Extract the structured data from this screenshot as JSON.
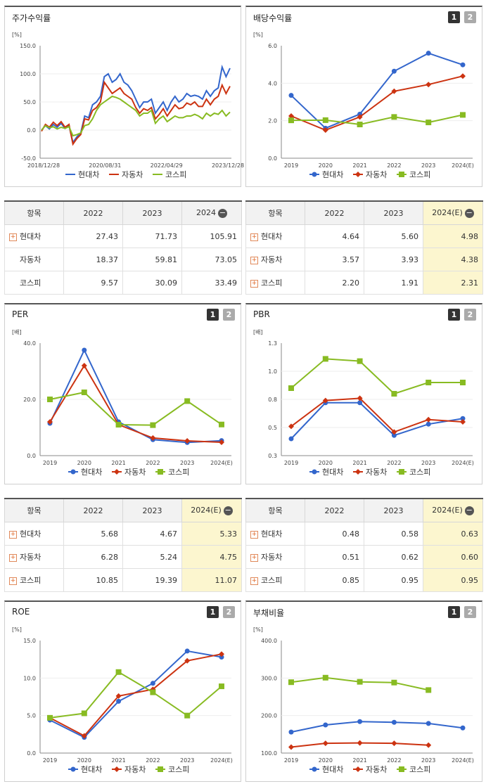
{
  "colors": {
    "hyundai": "#3366cc",
    "auto": "#cc3311",
    "kospi": "#88bb22"
  },
  "panels": [
    {
      "title": "주가수익률",
      "unit": "[%]",
      "buttons": [],
      "chart": {
        "type": "line",
        "ylim": [
          -50,
          150
        ],
        "yticks": [
          "150.0",
          "100.0",
          "50.0",
          "0.0",
          "-50.0"
        ],
        "xticks": [
          "2018/12/28",
          "2020/08/31",
          "2022/04/29",
          "2023/12/28"
        ],
        "legend": [
          "현대차",
          "자동차",
          "코스피"
        ]
      }
    },
    {
      "title": "배당수익률",
      "unit": "[%]",
      "buttons": [
        "1",
        "2"
      ],
      "chart": {
        "type": "line",
        "ylim": [
          0,
          6
        ],
        "yticks": [
          "6.0",
          "4.0",
          "2.0",
          "0.0"
        ],
        "xticks": [
          "2019",
          "2020",
          "2021",
          "2022",
          "2023",
          "2024(E)"
        ],
        "legend": [
          "현대차",
          "자동차",
          "코스피"
        ]
      }
    },
    {
      "title": "PER",
      "unit": "[배]",
      "buttons": [
        "1",
        "2"
      ],
      "chart": {
        "type": "line",
        "ylim": [
          0,
          40
        ],
        "yticks": [
          "40.0",
          "20.0",
          "0.0"
        ],
        "xticks": [
          "2019",
          "2020",
          "2021",
          "2022",
          "2023",
          "2024(E)"
        ],
        "legend": [
          "현대차",
          "자동차",
          "코스피"
        ]
      }
    },
    {
      "title": "PBR",
      "unit": "[배]",
      "buttons": [
        "1",
        "2"
      ],
      "chart": {
        "type": "line",
        "ylim": [
          0.3,
          1.3
        ],
        "yticks": [
          "1.3",
          "1.0",
          "0.8",
          "0.5",
          "0.3"
        ],
        "xticks": [
          "2019",
          "2020",
          "2021",
          "2022",
          "2023",
          "2024(E)"
        ],
        "legend": [
          "현대차",
          "자동차",
          "코스피"
        ]
      }
    },
    {
      "title": "ROE",
      "unit": "[%]",
      "buttons": [
        "1",
        "2"
      ],
      "chart": {
        "type": "line",
        "ylim": [
          0,
          15
        ],
        "yticks": [
          "15.0",
          "10.0",
          "5.0",
          "0.0"
        ],
        "xticks": [
          "2019",
          "2020",
          "2021",
          "2022",
          "2023",
          "2024(E)"
        ],
        "legend": [
          "현대차",
          "자동차",
          "코스피"
        ]
      }
    },
    {
      "title": "부채비율",
      "unit": "[%]",
      "buttons": [
        "1",
        "2"
      ],
      "chart": {
        "type": "line",
        "ylim": [
          100,
          400
        ],
        "yticks": [
          "400.0",
          "300.0",
          "200.0",
          "100.0"
        ],
        "xticks": [
          "2019",
          "2020",
          "2021",
          "2022",
          "2023",
          "2024(E)"
        ],
        "legend": [
          "현대차",
          "자동차",
          "코스피"
        ]
      }
    }
  ],
  "chart_data": [
    {
      "type": "line",
      "title": "주가수익률",
      "ylim": [
        -50,
        150
      ],
      "series": [
        {
          "name": "현대차",
          "values": [
            0,
            8,
            2,
            10,
            5,
            12,
            3,
            8,
            -22,
            -12,
            -5,
            25,
            22,
            45,
            50,
            60,
            95,
            100,
            85,
            90,
            100,
            85,
            80,
            70,
            55,
            40,
            50,
            50,
            55,
            30,
            40,
            50,
            35,
            50,
            60,
            50,
            55,
            65,
            60,
            62,
            60,
            55,
            70,
            60,
            70,
            75,
            112,
            95,
            110
          ]
        },
        {
          "name": "자동차",
          "values": [
            -2,
            10,
            5,
            14,
            8,
            15,
            5,
            10,
            -25,
            -15,
            -8,
            20,
            18,
            35,
            40,
            50,
            85,
            75,
            65,
            70,
            75,
            65,
            60,
            55,
            40,
            30,
            38,
            35,
            40,
            20,
            28,
            38,
            25,
            35,
            45,
            38,
            40,
            48,
            45,
            50,
            42,
            42,
            55,
            45,
            55,
            60,
            80,
            65,
            78
          ]
        },
        {
          "name": "코스피",
          "values": [
            0,
            8,
            4,
            6,
            2,
            5,
            3,
            6,
            -10,
            -8,
            -5,
            8,
            10,
            20,
            35,
            45,
            50,
            55,
            60,
            58,
            55,
            50,
            45,
            40,
            35,
            25,
            30,
            30,
            35,
            12,
            20,
            25,
            15,
            20,
            25,
            22,
            22,
            25,
            25,
            28,
            25,
            20,
            30,
            25,
            30,
            28,
            35,
            25,
            32
          ]
        }
      ]
    },
    {
      "type": "line",
      "title": "배당수익률",
      "categories": [
        "2019",
        "2020",
        "2021",
        "2022",
        "2023",
        "2024(E)"
      ],
      "ylim": [
        0,
        6
      ],
      "series": [
        {
          "name": "현대차",
          "values": [
            3.35,
            1.6,
            2.35,
            4.64,
            5.6,
            4.98
          ]
        },
        {
          "name": "자동차",
          "values": [
            2.25,
            1.5,
            2.2,
            3.57,
            3.93,
            4.38
          ]
        },
        {
          "name": "코스피",
          "values": [
            2.02,
            2.03,
            1.8,
            2.2,
            1.91,
            2.31
          ]
        }
      ]
    },
    {
      "type": "line",
      "title": "PER",
      "categories": [
        "2019",
        "2020",
        "2021",
        "2022",
        "2023",
        "2024(E)"
      ],
      "ylim": [
        0,
        40
      ],
      "series": [
        {
          "name": "현대차",
          "values": [
            11.5,
            37.5,
            12.0,
            5.68,
            4.67,
            5.33
          ]
        },
        {
          "name": "자동차",
          "values": [
            12.0,
            32.0,
            11.0,
            6.28,
            5.24,
            4.75
          ]
        },
        {
          "name": "코스피",
          "values": [
            20.0,
            22.5,
            11.0,
            10.85,
            19.39,
            11.07
          ]
        }
      ]
    },
    {
      "type": "line",
      "title": "PBR",
      "categories": [
        "2019",
        "2020",
        "2021",
        "2022",
        "2023",
        "2024(E)"
      ],
      "ylim": [
        0.3,
        1.3
      ],
      "series": [
        {
          "name": "현대차",
          "values": [
            0.45,
            0.77,
            0.77,
            0.48,
            0.58,
            0.63
          ]
        },
        {
          "name": "자동차",
          "values": [
            0.56,
            0.79,
            0.81,
            0.51,
            0.62,
            0.6
          ]
        },
        {
          "name": "코스피",
          "values": [
            0.9,
            1.16,
            1.14,
            0.85,
            0.95,
            0.95
          ]
        }
      ]
    },
    {
      "type": "line",
      "title": "ROE",
      "categories": [
        "2019",
        "2020",
        "2021",
        "2022",
        "2023",
        "2024(E)"
      ],
      "ylim": [
        0,
        15
      ],
      "series": [
        {
          "name": "현대차",
          "values": [
            4.4,
            2.1,
            6.9,
            9.3,
            13.6,
            12.8
          ]
        },
        {
          "name": "자동차",
          "values": [
            4.7,
            2.3,
            7.6,
            8.5,
            12.3,
            13.2
          ]
        },
        {
          "name": "코스피",
          "values": [
            4.7,
            5.3,
            10.8,
            8.1,
            5.0,
            8.9
          ]
        }
      ]
    },
    {
      "type": "line",
      "title": "부채비율",
      "categories": [
        "2019",
        "2020",
        "2021",
        "2022",
        "2023",
        "2024(E)"
      ],
      "ylim": [
        100,
        400
      ],
      "series": [
        {
          "name": "현대차",
          "values": [
            156,
            175,
            184,
            182,
            179,
            167
          ]
        },
        {
          "name": "자동차",
          "values": [
            116,
            126,
            127,
            126,
            121,
            null
          ]
        },
        {
          "name": "코스피",
          "values": [
            289,
            301,
            290,
            288,
            268,
            null
          ]
        }
      ]
    }
  ],
  "tables": [
    {
      "label": "항목",
      "years": [
        "2022",
        "2023",
        "2024"
      ],
      "highlight": false,
      "rows": [
        {
          "name": "현대차",
          "plus": true,
          "v": [
            "27.43",
            "71.73",
            "105.91"
          ]
        },
        {
          "name": "자동차",
          "plus": false,
          "v": [
            "18.37",
            "59.81",
            "73.05"
          ]
        },
        {
          "name": "코스피",
          "plus": false,
          "v": [
            "9.57",
            "30.09",
            "33.49"
          ]
        }
      ]
    },
    {
      "label": "항목",
      "years": [
        "2022",
        "2023",
        "2024(E)"
      ],
      "highlight": true,
      "rows": [
        {
          "name": "현대차",
          "plus": true,
          "v": [
            "4.64",
            "5.60",
            "4.98"
          ]
        },
        {
          "name": "자동차",
          "plus": true,
          "v": [
            "3.57",
            "3.93",
            "4.38"
          ]
        },
        {
          "name": "코스피",
          "plus": true,
          "v": [
            "2.20",
            "1.91",
            "2.31"
          ]
        }
      ]
    },
    {
      "label": "항목",
      "years": [
        "2022",
        "2023",
        "2024(E)"
      ],
      "highlight": true,
      "rows": [
        {
          "name": "현대차",
          "plus": true,
          "v": [
            "5.68",
            "4.67",
            "5.33"
          ]
        },
        {
          "name": "자동차",
          "plus": true,
          "v": [
            "6.28",
            "5.24",
            "4.75"
          ]
        },
        {
          "name": "코스피",
          "plus": true,
          "v": [
            "10.85",
            "19.39",
            "11.07"
          ]
        }
      ]
    },
    {
      "label": "항목",
      "years": [
        "2022",
        "2023",
        "2024(E)"
      ],
      "highlight": true,
      "rows": [
        {
          "name": "현대차",
          "plus": true,
          "v": [
            "0.48",
            "0.58",
            "0.63"
          ]
        },
        {
          "name": "자동차",
          "plus": true,
          "v": [
            "0.51",
            "0.62",
            "0.60"
          ]
        },
        {
          "name": "코스피",
          "plus": true,
          "v": [
            "0.85",
            "0.95",
            "0.95"
          ]
        }
      ]
    }
  ]
}
